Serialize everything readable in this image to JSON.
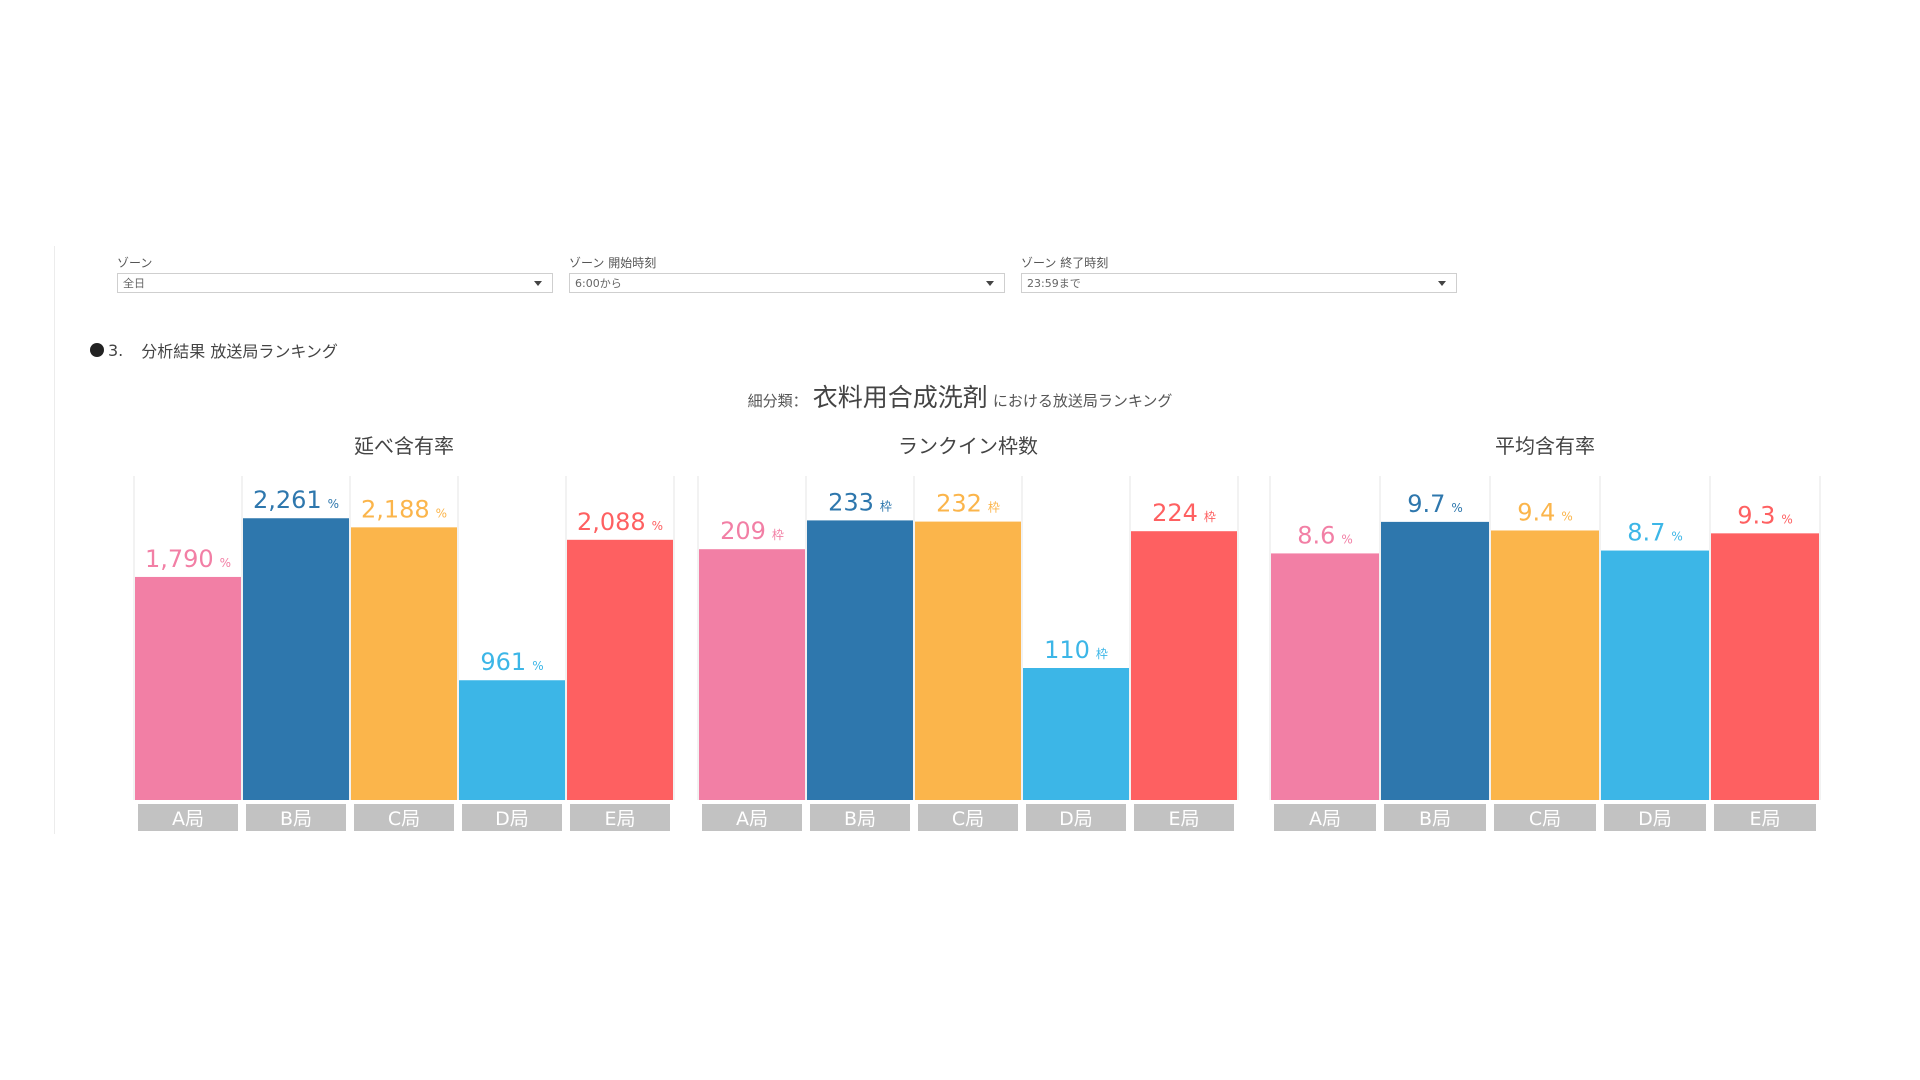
{
  "filters": [
    {
      "label": "ゾーン",
      "value": "全日"
    },
    {
      "label": "ゾーン 開始時刻",
      "value": "6:00から"
    },
    {
      "label": "ゾーン 終了時刻",
      "value": "23:59まで"
    }
  ],
  "section": {
    "number": "3.",
    "title": "分析結果 放送局ランキング"
  },
  "chart_title": {
    "prefix": "細分類：",
    "main": "衣料用合成洗剤",
    "suffix": "における放送局ランキング"
  },
  "colors": {
    "A局": "#F27FA5",
    "B局": "#2E77AD",
    "C局": "#FBB54B",
    "D局": "#3CB6E7",
    "E局": "#FE6061",
    "category_bg": "#c2c2c2"
  },
  "chart_data": [
    {
      "type": "bar",
      "title": "延べ含有率",
      "categories": [
        "A局",
        "B局",
        "C局",
        "D局",
        "E局"
      ],
      "values": [
        1790,
        2261,
        2188,
        961,
        2088
      ],
      "labels": [
        "1,790",
        "2,261",
        "2,188",
        "961",
        "2,088"
      ],
      "unit": "%",
      "ylim": [
        0,
        2600
      ]
    },
    {
      "type": "bar",
      "title": "ランクイン枠数",
      "categories": [
        "A局",
        "B局",
        "C局",
        "D局",
        "E局"
      ],
      "values": [
        209,
        233,
        232,
        110,
        224
      ],
      "labels": [
        "209",
        "233",
        "232",
        "110",
        "224"
      ],
      "unit": "枠",
      "ylim": [
        0,
        270
      ]
    },
    {
      "type": "bar",
      "title": "平均含有率",
      "categories": [
        "A局",
        "B局",
        "C局",
        "D局",
        "E局"
      ],
      "values": [
        8.6,
        9.7,
        9.4,
        8.7,
        9.3
      ],
      "labels": [
        "8.6",
        "9.7",
        "9.4",
        "8.7",
        "9.3"
      ],
      "unit": "%",
      "ylim": [
        0,
        11.3
      ]
    }
  ]
}
